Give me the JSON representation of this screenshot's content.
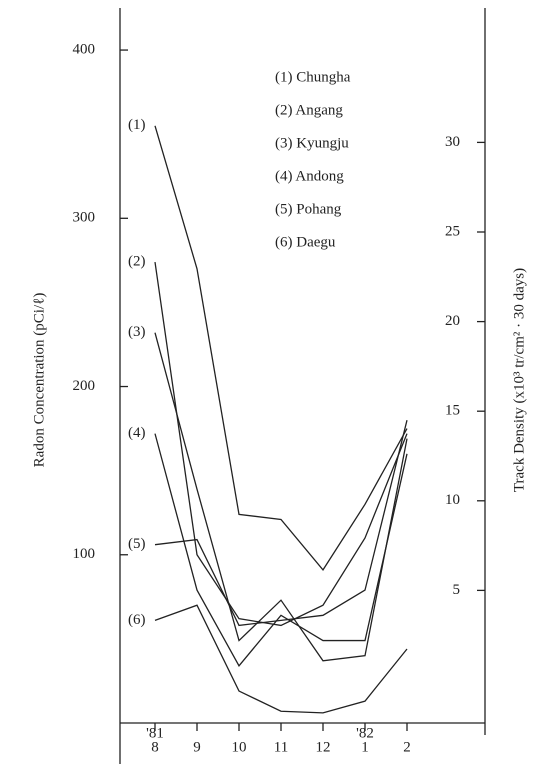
{
  "chart_data": {
    "type": "line",
    "y_label": "Radon Concentration (pCi/ℓ)",
    "y2_label": "Track Density (x10³ tr/cm² · 30 days)",
    "categories": [
      "8",
      "9",
      "10",
      "11",
      "12",
      "1",
      "2"
    ],
    "year_labels": [
      {
        "index": 0,
        "label": "'81"
      },
      {
        "index": 5,
        "label": "'82"
      }
    ],
    "series": [
      {
        "name": "Chungha",
        "tag": "(1)",
        "legend": "(1) Chungha",
        "color": "#222222",
        "values": [
          355,
          270,
          124,
          121,
          91,
          130,
          175
        ]
      },
      {
        "name": "Angang",
        "tag": "(2)",
        "legend": "(2) Angang",
        "color": "#222222",
        "values": [
          274,
          100,
          62,
          58,
          70,
          110,
          172
        ]
      },
      {
        "name": "Kyungju",
        "tag": "(3)",
        "legend": "(3) Kyungju",
        "color": "#222222",
        "values": [
          232,
          139,
          49,
          73,
          37,
          40,
          169
        ]
      },
      {
        "name": "Andong",
        "tag": "(4)",
        "legend": "(4) Andong",
        "color": "#222222",
        "values": [
          172,
          79,
          34,
          64,
          49,
          49,
          160
        ]
      },
      {
        "name": "Pohang",
        "tag": "(5)",
        "legend": "(5) Pohang",
        "color": "#222222",
        "values": [
          106,
          109,
          58,
          61,
          64,
          79,
          180
        ]
      },
      {
        "name": "Daegu",
        "tag": "(6)",
        "legend": "(6) Daegu",
        "color": "#222222",
        "values": [
          61,
          70,
          19,
          7,
          6,
          13,
          44
        ]
      }
    ],
    "ylim": [
      0,
      425
    ],
    "yticks": [
      100,
      200,
      300,
      400
    ],
    "y2lim": [
      -2.4,
      37.5
    ],
    "y2ticks": [
      5,
      10,
      15,
      20,
      25,
      30
    ]
  }
}
